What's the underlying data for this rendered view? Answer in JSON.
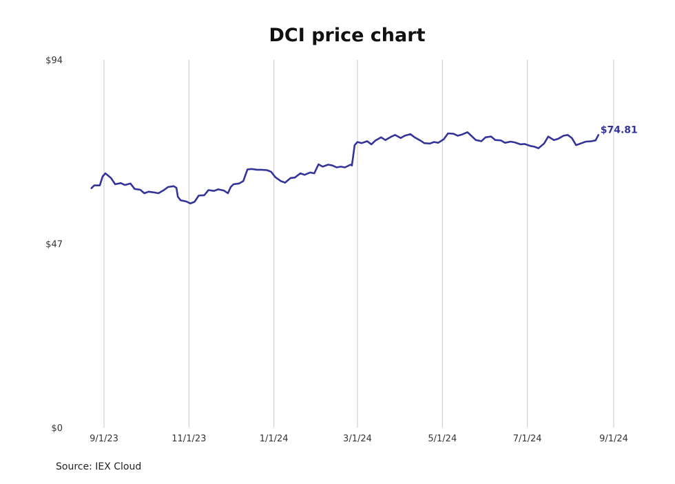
{
  "chart_data": {
    "type": "line",
    "title": "DCI price chart",
    "source": "Source: IEX Cloud",
    "xlabel": "",
    "ylabel": "",
    "ylim": [
      0,
      94
    ],
    "y_ticks": [
      {
        "value": 94,
        "label": "$94"
      },
      {
        "value": 47,
        "label": "$47"
      },
      {
        "value": 0,
        "label": "$0"
      }
    ],
    "x_ticks": [
      {
        "date": "2023-09-01",
        "label": "9/1/23"
      },
      {
        "date": "2023-11-01",
        "label": "11/1/23"
      },
      {
        "date": "2024-01-01",
        "label": "1/1/24"
      },
      {
        "date": "2024-03-01",
        "label": "3/1/24"
      },
      {
        "date": "2024-05-01",
        "label": "5/1/24"
      },
      {
        "date": "2024-07-01",
        "label": "7/1/24"
      },
      {
        "date": "2024-09-01",
        "label": "9/1/24"
      }
    ],
    "grid": "vertical",
    "line_color": "#33339a",
    "last_value_label": "$74.81",
    "series": [
      {
        "points": [
          [
            "2023-08-23",
            61.2
          ],
          [
            "2023-08-25",
            61.9
          ],
          [
            "2023-08-29",
            61.9
          ],
          [
            "2023-08-31",
            64.2
          ],
          [
            "2023-09-02",
            65.0
          ],
          [
            "2023-09-06",
            63.8
          ],
          [
            "2023-09-09",
            62.2
          ],
          [
            "2023-09-13",
            62.5
          ],
          [
            "2023-09-16",
            62.0
          ],
          [
            "2023-09-20",
            62.4
          ],
          [
            "2023-09-23",
            61.0
          ],
          [
            "2023-09-27",
            60.8
          ],
          [
            "2023-09-30",
            59.9
          ],
          [
            "2023-10-03",
            60.3
          ],
          [
            "2023-10-07",
            60.1
          ],
          [
            "2023-10-10",
            59.9
          ],
          [
            "2023-10-14",
            60.7
          ],
          [
            "2023-10-17",
            61.5
          ],
          [
            "2023-10-21",
            61.7
          ],
          [
            "2023-10-23",
            61.3
          ],
          [
            "2023-10-24",
            59.0
          ],
          [
            "2023-10-26",
            58.1
          ],
          [
            "2023-10-30",
            57.8
          ],
          [
            "2023-11-02",
            57.3
          ],
          [
            "2023-11-05",
            57.7
          ],
          [
            "2023-11-08",
            59.3
          ],
          [
            "2023-11-12",
            59.4
          ],
          [
            "2023-11-15",
            60.7
          ],
          [
            "2023-11-19",
            60.5
          ],
          [
            "2023-11-22",
            60.9
          ],
          [
            "2023-11-26",
            60.6
          ],
          [
            "2023-11-29",
            59.9
          ],
          [
            "2023-12-01",
            61.5
          ],
          [
            "2023-12-03",
            62.2
          ],
          [
            "2023-12-07",
            62.4
          ],
          [
            "2023-12-10",
            63.0
          ],
          [
            "2023-12-13",
            66.0
          ],
          [
            "2023-12-16",
            66.1
          ],
          [
            "2023-12-20",
            65.9
          ],
          [
            "2023-12-23",
            65.9
          ],
          [
            "2023-12-27",
            65.8
          ],
          [
            "2023-12-30",
            65.4
          ],
          [
            "2024-01-02",
            64.0
          ],
          [
            "2024-01-06",
            63.0
          ],
          [
            "2024-01-09",
            62.6
          ],
          [
            "2024-01-13",
            63.8
          ],
          [
            "2024-01-16",
            63.9
          ],
          [
            "2024-01-20",
            65.0
          ],
          [
            "2024-01-23",
            64.6
          ],
          [
            "2024-01-27",
            65.2
          ],
          [
            "2024-01-30",
            65.0
          ],
          [
            "2024-02-02",
            67.3
          ],
          [
            "2024-02-05",
            66.7
          ],
          [
            "2024-02-09",
            67.2
          ],
          [
            "2024-02-12",
            67.0
          ],
          [
            "2024-02-15",
            66.5
          ],
          [
            "2024-02-18",
            66.7
          ],
          [
            "2024-02-21",
            66.5
          ],
          [
            "2024-02-25",
            67.2
          ],
          [
            "2024-02-26",
            67.0
          ],
          [
            "2024-02-28",
            72.2
          ],
          [
            "2024-03-01",
            73.0
          ],
          [
            "2024-03-04",
            72.7
          ],
          [
            "2024-03-08",
            73.2
          ],
          [
            "2024-03-11",
            72.4
          ],
          [
            "2024-03-14",
            73.4
          ],
          [
            "2024-03-18",
            74.2
          ],
          [
            "2024-03-21",
            73.5
          ],
          [
            "2024-03-25",
            74.3
          ],
          [
            "2024-03-28",
            74.8
          ],
          [
            "2024-04-01",
            74.0
          ],
          [
            "2024-04-04",
            74.6
          ],
          [
            "2024-04-08",
            75.0
          ],
          [
            "2024-04-11",
            74.2
          ],
          [
            "2024-04-15",
            73.4
          ],
          [
            "2024-04-18",
            72.7
          ],
          [
            "2024-04-22",
            72.6
          ],
          [
            "2024-04-25",
            73.0
          ],
          [
            "2024-04-28",
            72.8
          ],
          [
            "2024-05-02",
            73.7
          ],
          [
            "2024-05-05",
            75.2
          ],
          [
            "2024-05-09",
            75.1
          ],
          [
            "2024-05-12",
            74.6
          ],
          [
            "2024-05-15",
            74.9
          ],
          [
            "2024-05-19",
            75.5
          ],
          [
            "2024-05-22",
            74.5
          ],
          [
            "2024-05-25",
            73.5
          ],
          [
            "2024-05-29",
            73.2
          ],
          [
            "2024-06-01",
            74.2
          ],
          [
            "2024-06-05",
            74.4
          ],
          [
            "2024-06-08",
            73.5
          ],
          [
            "2024-06-12",
            73.4
          ],
          [
            "2024-06-15",
            72.8
          ],
          [
            "2024-06-19",
            73.1
          ],
          [
            "2024-06-22",
            72.9
          ],
          [
            "2024-06-26",
            72.4
          ],
          [
            "2024-06-29",
            72.5
          ],
          [
            "2024-07-03",
            72.0
          ],
          [
            "2024-07-06",
            71.8
          ],
          [
            "2024-07-09",
            71.4
          ],
          [
            "2024-07-13",
            72.6
          ],
          [
            "2024-07-16",
            74.4
          ],
          [
            "2024-07-20",
            73.5
          ],
          [
            "2024-07-23",
            73.8
          ],
          [
            "2024-07-27",
            74.6
          ],
          [
            "2024-07-30",
            74.8
          ],
          [
            "2024-08-02",
            74.0
          ],
          [
            "2024-08-05",
            72.2
          ],
          [
            "2024-08-09",
            72.7
          ],
          [
            "2024-08-12",
            73.1
          ],
          [
            "2024-08-16",
            73.2
          ],
          [
            "2024-08-19",
            73.4
          ],
          [
            "2024-08-21",
            74.8
          ]
        ]
      }
    ]
  }
}
